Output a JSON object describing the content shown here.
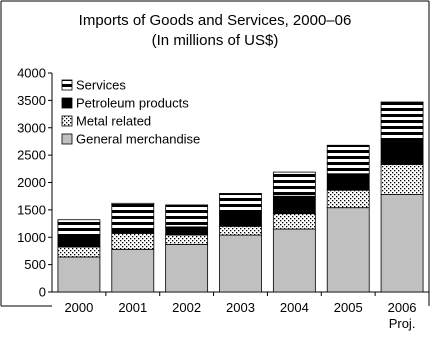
{
  "chart_data": {
    "type": "bar",
    "stacked": true,
    "title": "Imports of Goods and Services, 2000–06",
    "subtitle": "(In millions of US$)",
    "categories": [
      "2000",
      "2001",
      "2002",
      "2003",
      "2004",
      "2005",
      "2006"
    ],
    "category_sublabels": [
      "",
      "",
      "",
      "",
      "",
      "",
      "Proj."
    ],
    "series": [
      {
        "name": "General merchandise",
        "values": [
          640,
          780,
          870,
          1040,
          1150,
          1540,
          1780
        ],
        "color": "#c0c0c0",
        "pattern": "solid"
      },
      {
        "name": "Metal related",
        "values": [
          180,
          290,
          170,
          160,
          280,
          320,
          550
        ],
        "color": "#ffffff",
        "pattern": "dots"
      },
      {
        "name": "Petroleum products",
        "values": [
          200,
          90,
          150,
          240,
          320,
          300,
          420
        ],
        "color": "#000000",
        "pattern": "solid"
      },
      {
        "name": "Services",
        "values": [
          300,
          460,
          400,
          360,
          440,
          520,
          720
        ],
        "color": "#000000",
        "pattern": "horizontal-stripes"
      }
    ],
    "xlabel": "",
    "ylabel": "",
    "ylim": [
      0,
      4000
    ],
    "yticks": [
      0,
      500,
      1000,
      1500,
      2000,
      2500,
      3000,
      3500,
      4000
    ],
    "grid": false,
    "legend_placement": "top-left"
  }
}
